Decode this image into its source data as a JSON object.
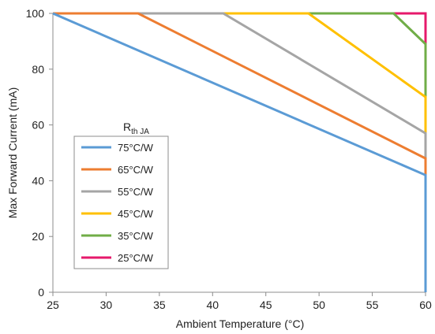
{
  "chart_data": {
    "type": "line",
    "xlabel": "Ambient Temperature (°C)",
    "ylabel": "Max Forward Current (mA)",
    "xlim": [
      25,
      60
    ],
    "ylim": [
      0,
      100
    ],
    "x_ticks": [
      25,
      30,
      35,
      40,
      45,
      50,
      55,
      60
    ],
    "y_ticks": [
      0,
      20,
      40,
      60,
      80,
      100
    ],
    "grid": false,
    "legend": {
      "title_main": "R",
      "title_sub": "th JA",
      "placement": "lower-left"
    },
    "series": [
      {
        "name": "75°C/W",
        "color": "#5b9bd5",
        "points": [
          [
            25,
            100
          ],
          [
            60,
            42
          ],
          [
            60,
            0
          ]
        ]
      },
      {
        "name": "65°C/W",
        "color": "#ed7d31",
        "points": [
          [
            25,
            100
          ],
          [
            33,
            100
          ],
          [
            60,
            48
          ],
          [
            60,
            42
          ]
        ]
      },
      {
        "name": "55°C/W",
        "color": "#a5a5a5",
        "points": [
          [
            33,
            100
          ],
          [
            41,
            100
          ],
          [
            60,
            57
          ],
          [
            60,
            48
          ]
        ]
      },
      {
        "name": "45°C/W",
        "color": "#ffc000",
        "points": [
          [
            41,
            100
          ],
          [
            49,
            100
          ],
          [
            60,
            70
          ],
          [
            60,
            57
          ]
        ]
      },
      {
        "name": "35°C/W",
        "color": "#70ad47",
        "points": [
          [
            49,
            100
          ],
          [
            57,
            100
          ],
          [
            60,
            89
          ],
          [
            60,
            70
          ]
        ]
      },
      {
        "name": "25°C/W",
        "color": "#e6196b",
        "points": [
          [
            57,
            100
          ],
          [
            60,
            100
          ],
          [
            60,
            89
          ]
        ]
      }
    ]
  }
}
